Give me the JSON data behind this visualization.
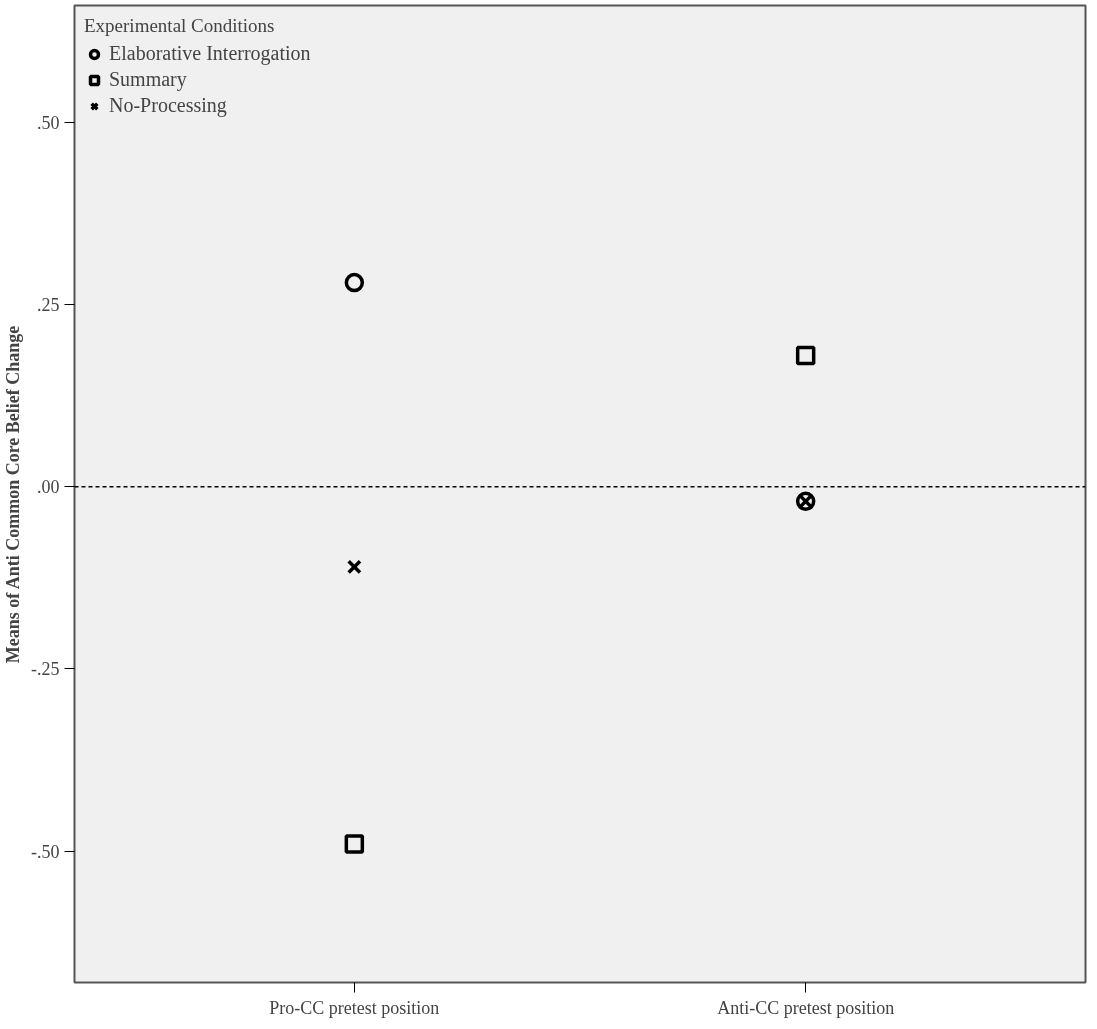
{
  "chart_data": {
    "type": "scatter",
    "ylabel": "Means of Anti Common Core Belief Change",
    "legend_title": "Experimental Conditions",
    "categories": [
      "Pro-CC pretest position",
      "Anti-CC pretest position"
    ],
    "series": [
      {
        "name": "Elaborative Interrogation",
        "color": "#000000",
        "marker": "circle",
        "values": [
          0.28,
          -0.02
        ]
      },
      {
        "name": "Summary",
        "color": "#000000",
        "marker": "square",
        "values": [
          -0.49,
          0.18
        ]
      },
      {
        "name": "No-Processing",
        "color": "#000000",
        "marker": "cross",
        "values": [
          -0.11,
          -0.02
        ]
      }
    ],
    "ylim": [
      -0.68,
      0.66
    ],
    "yticks": [
      {
        "value": -0.5,
        "label": "-.50"
      },
      {
        "value": -0.25,
        "label": "-.25"
      },
      {
        "value": 0,
        "label": ".00"
      },
      {
        "value": 0.25,
        "label": ".25"
      },
      {
        "value": 0.5,
        "label": ".50"
      }
    ],
    "ref_lines": [
      {
        "axis": "y",
        "value": 0,
        "line_style": "dashed",
        "color": "#000000"
      }
    ],
    "grid": false,
    "legend": "top left"
  }
}
